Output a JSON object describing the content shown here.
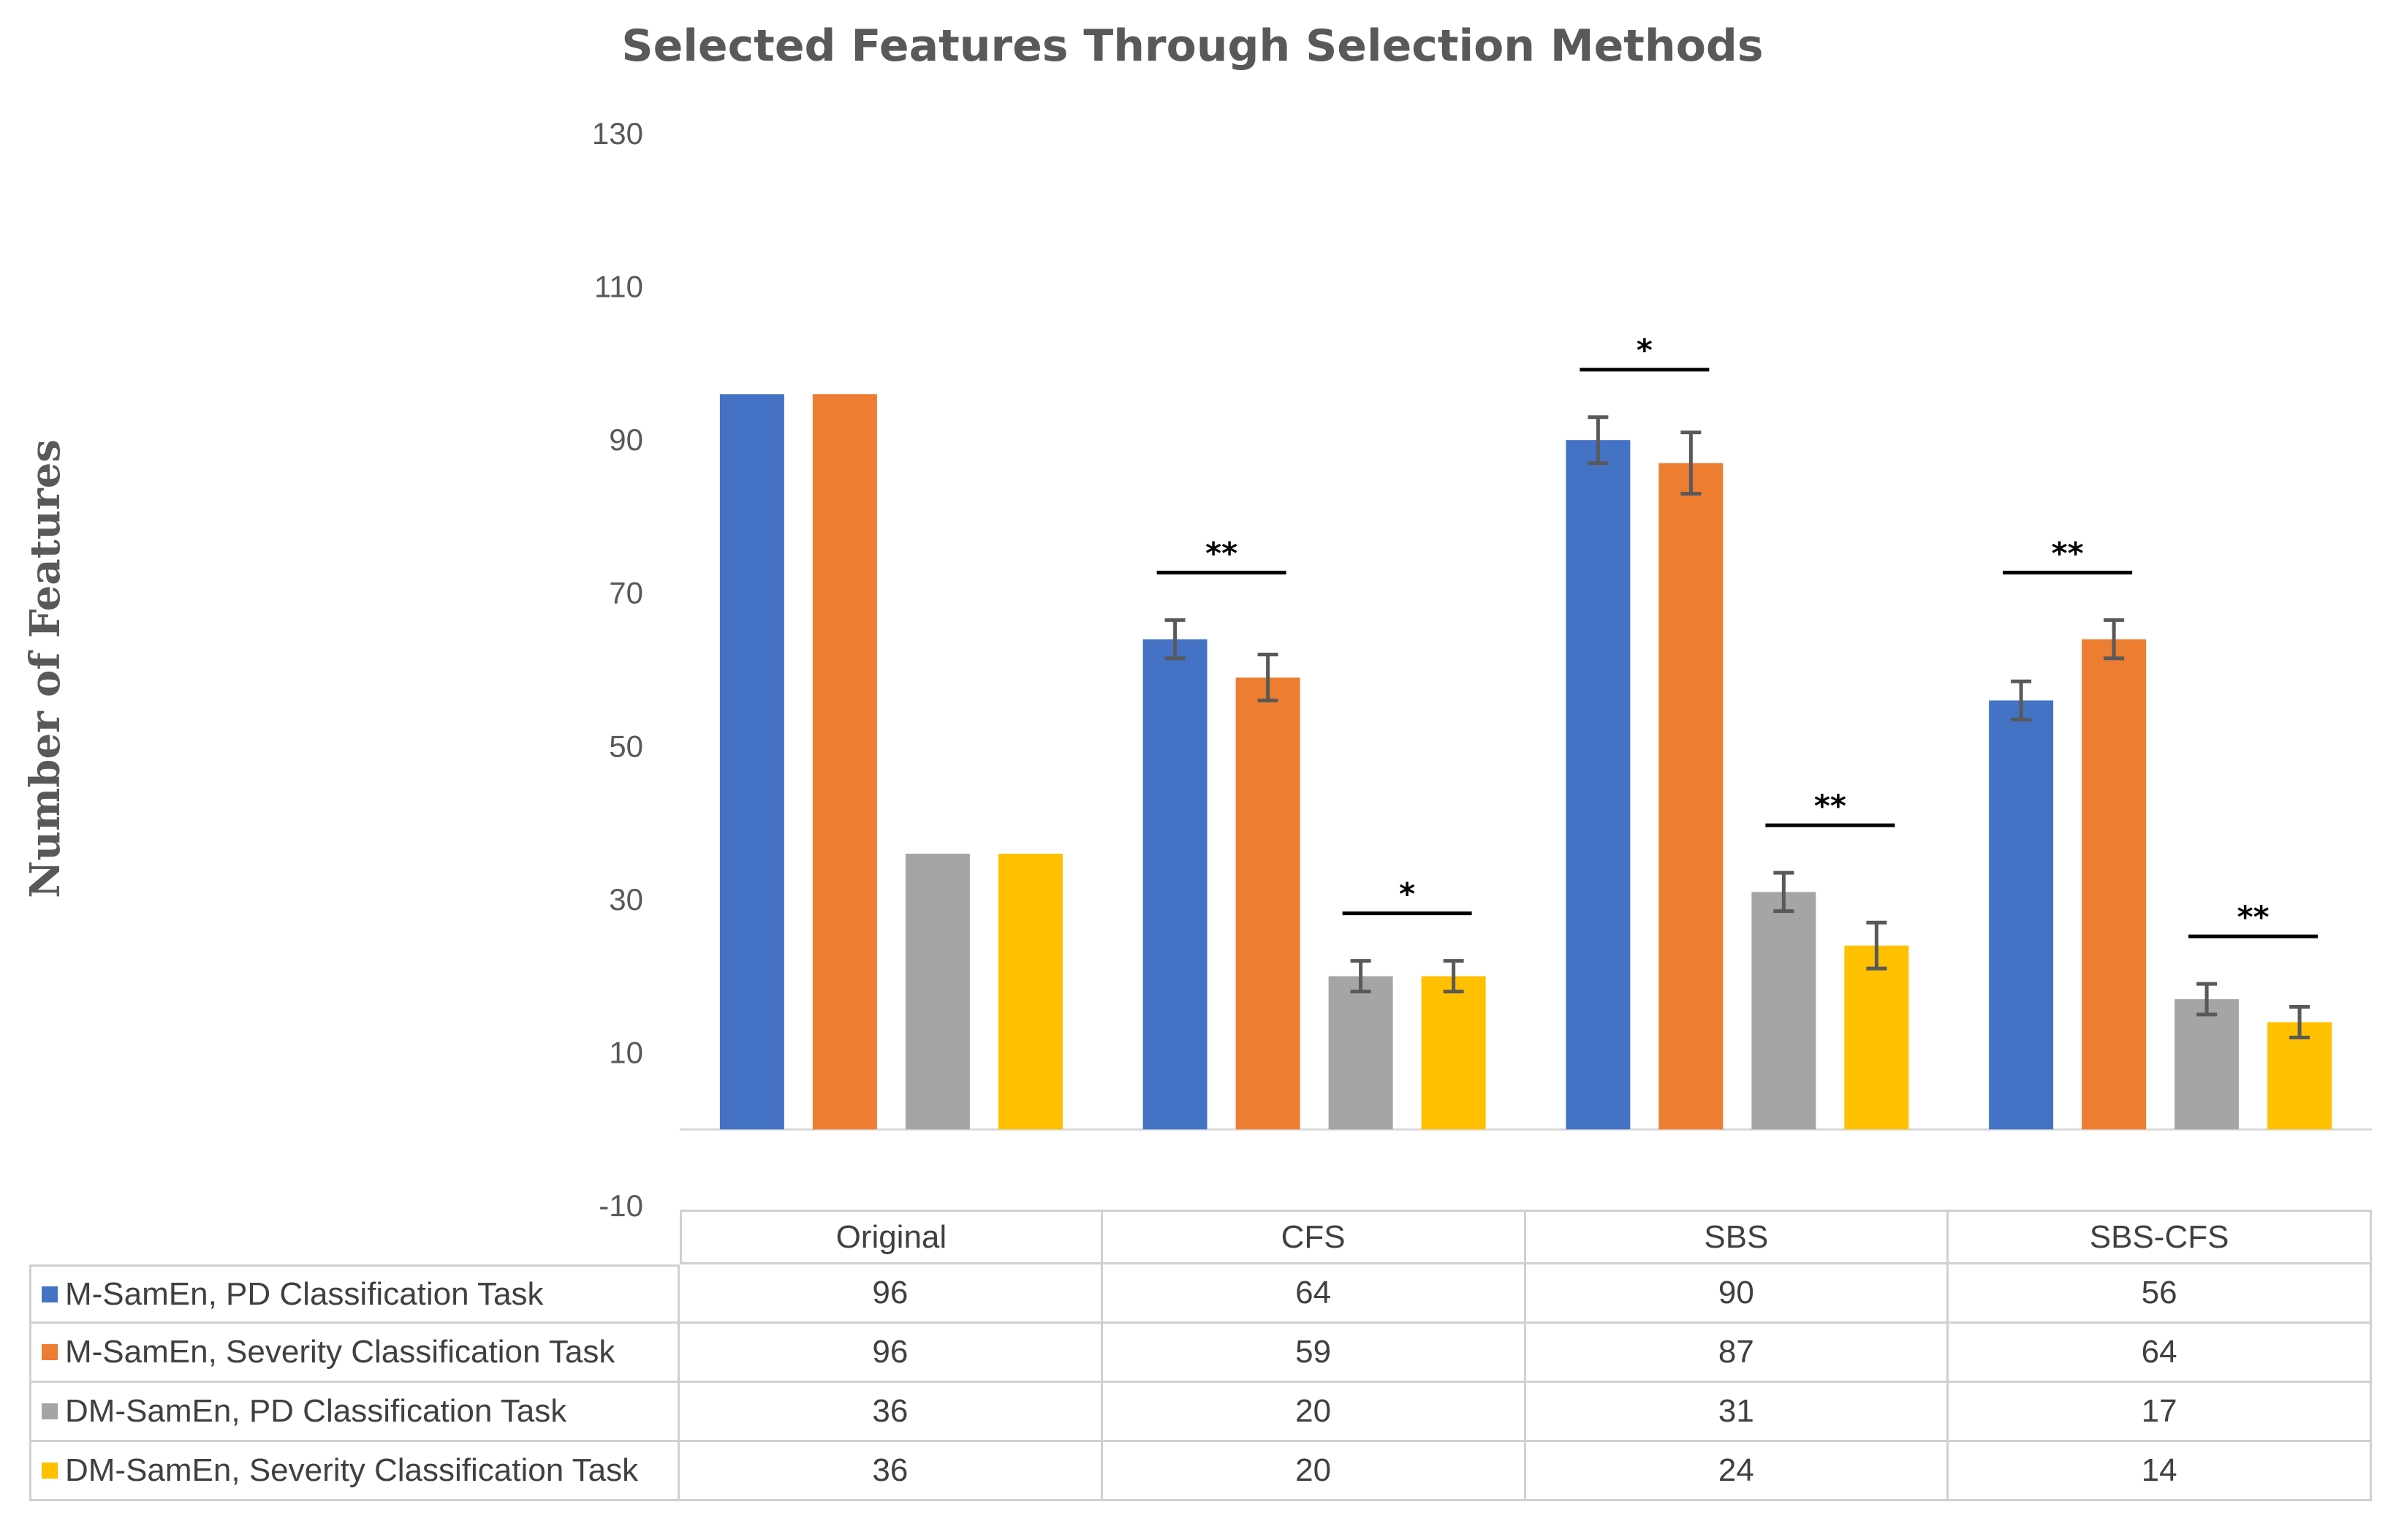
{
  "chart_data": {
    "type": "bar",
    "title": "Selected Features Through Selection Methods",
    "ylabel": "Number of Features",
    "xlabel": "",
    "categories": [
      "Original",
      "CFS",
      "SBS",
      "SBS-CFS"
    ],
    "ylim": [
      -10,
      130
    ],
    "yticks": [
      -10,
      10,
      30,
      50,
      70,
      90,
      110,
      130
    ],
    "grid": false,
    "legend": "data-table-below",
    "series": [
      {
        "name": "M-SamEn,  PD Classification Task",
        "color": "#4472C4",
        "values": [
          96,
          64,
          90,
          56
        ],
        "errors": [
          0,
          2.5,
          3,
          2.5
        ]
      },
      {
        "name": "M-SamEn,  Severity Classification Task",
        "color": "#ED7D31",
        "values": [
          96,
          59,
          87,
          64
        ],
        "errors": [
          0,
          3,
          4,
          2.5
        ]
      },
      {
        "name": "DM-SamEn,  PD Classification Task",
        "color": "#A5A5A5",
        "values": [
          36,
          20,
          31,
          17
        ],
        "errors": [
          0,
          2,
          2.5,
          2
        ]
      },
      {
        "name": "DM-SamEn,  Severity Classification Task",
        "color": "#FFC000",
        "values": [
          36,
          20,
          24,
          14
        ],
        "errors": [
          0,
          2,
          3,
          2
        ]
      }
    ],
    "significance": [
      {
        "category": "CFS",
        "series": [
          0,
          1
        ],
        "label": "**"
      },
      {
        "category": "CFS",
        "series": [
          2,
          3
        ],
        "label": "*"
      },
      {
        "category": "SBS",
        "series": [
          0,
          1
        ],
        "label": "*"
      },
      {
        "category": "SBS",
        "series": [
          2,
          3
        ],
        "label": "**"
      },
      {
        "category": "SBS-CFS",
        "series": [
          0,
          1
        ],
        "label": "**"
      },
      {
        "category": "SBS-CFS",
        "series": [
          2,
          3
        ],
        "label": "**"
      }
    ]
  }
}
